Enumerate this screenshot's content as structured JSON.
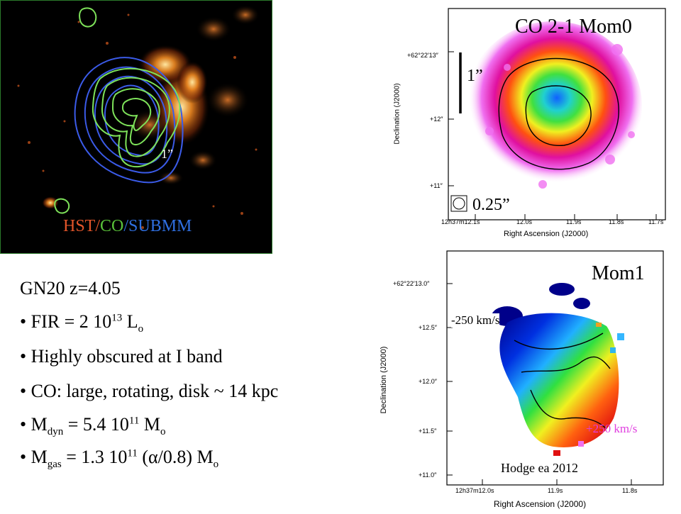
{
  "hst_panel": {
    "legend": {
      "hst": "HST",
      "sep1": "/",
      "co": "CO",
      "sep2": "/",
      "submm": "SUBMM"
    },
    "scale_label": "1”",
    "colors": {
      "hst": "#e2552a",
      "co": "#5ac23a",
      "submm": "#2f6fe0",
      "contour_green": "#7ee25a",
      "contour_blue": "#3b5be8"
    }
  },
  "summary": {
    "title": "GN20  z=4.05",
    "fir": {
      "prefix": "• FIR = 2 10",
      "exp": "13",
      "mid": " L",
      "sub": "o"
    },
    "obscured": "• Highly obscured at I band",
    "co_line": "• CO: large, rotating, disk ~ 14 kpc",
    "mdyn": {
      "prefix": "• M",
      "sub1": "dyn",
      "mid": " = 5.4 10",
      "exp": "11",
      "mid2": " M",
      "sub2": "o"
    },
    "mgas": {
      "prefix": "• M",
      "sub1": "gas",
      "mid": " = 1.3 10",
      "exp": "11",
      "mid2": " (α/0.8) M",
      "sub2": "o"
    }
  },
  "mom0_panel": {
    "title": "CO 2-1 Mom0",
    "scale_label": "1”",
    "beam_label": "0.25”",
    "ylabel": "Declination (J2000)",
    "xlabel": "Right Ascension (J2000)",
    "yticks": [
      "+62°22′13″",
      "+12″",
      "+11″"
    ],
    "xticks": [
      "12h37m12.1s",
      "12.0s",
      "11.9s",
      "11.8s",
      "11.7s"
    ]
  },
  "mom1_panel": {
    "title": "Mom1",
    "neg_label": "-250 km/s",
    "pos_label": "+250 km/s",
    "credit": "Hodge ea 2012",
    "ylabel": "Declination (J2000)",
    "xlabel": "Right Ascension (J2000)",
    "yticks": [
      "+62°22′13.0″",
      "+12.5″",
      "+12.0″",
      "+11.5″",
      "+11.0″"
    ],
    "xticks": [
      "12h37m12.0s",
      "11.9s",
      "11.8s"
    ],
    "colors": {
      "pos_label": "#e040e0"
    }
  }
}
